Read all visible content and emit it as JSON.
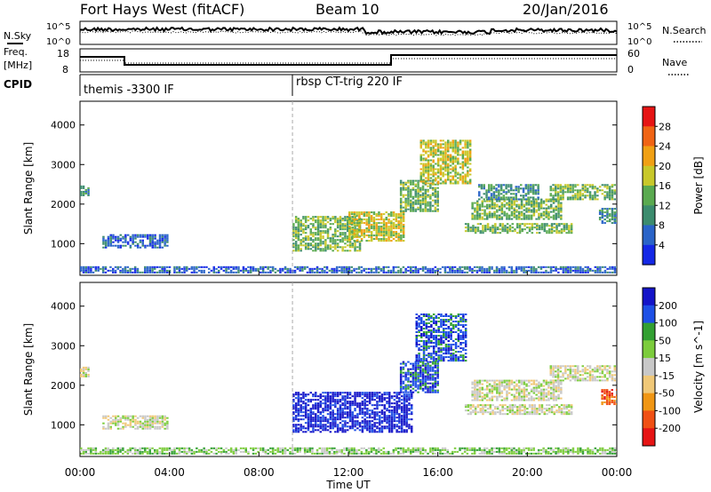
{
  "header": {
    "station": "Fort Hays West (fitACF)",
    "beam": "Beam 10",
    "date": "20/Jan/2016"
  },
  "noise_panel": {
    "left_label": "N.Sky",
    "left_ticks": [
      "10^5",
      "10^0"
    ],
    "right_label": "N.Search",
    "right_ticks": [
      "10^5",
      "10^0"
    ]
  },
  "freq_panel": {
    "left_label_1": "Freq.",
    "left_label_2": "[MHz]",
    "left_ticks": [
      "18",
      "8"
    ],
    "right_label": "Nave",
    "right_ticks": [
      "60",
      "0"
    ]
  },
  "cpid_panel": {
    "label": "CPID",
    "segments": [
      "themis -3300 IF",
      "rbsp CT-trig 220 IF"
    ]
  },
  "chart_data": [
    {
      "type": "heatmap",
      "name": "power",
      "ylabel": "Slant Range [km]",
      "yticks": [
        1000,
        2000,
        3000,
        4000
      ],
      "ylim": [
        200,
        4600
      ],
      "xlim": [
        0,
        24
      ],
      "colorbar_label": "Power [dB]",
      "colorbar_ticks": [
        "4",
        "8",
        "12",
        "16",
        "20",
        "24",
        "28"
      ],
      "colors": [
        "#1428e6",
        "#2a64c8",
        "#3c8c6e",
        "#5aaa50",
        "#c8c82a",
        "#f0a014",
        "#f06414",
        "#e61414"
      ],
      "regions": [
        {
          "t0": 0.0,
          "t1": 0.35,
          "r0": 2200,
          "r1": 2450,
          "level": 2
        },
        {
          "t0": 1.0,
          "t1": 3.9,
          "r0": 880,
          "r1": 1200,
          "level": 1
        },
        {
          "t0": 9.5,
          "t1": 12.5,
          "r0": 800,
          "r1": 1700,
          "level": 3
        },
        {
          "t0": 12.0,
          "t1": 14.5,
          "r0": 1050,
          "r1": 1800,
          "level": 4
        },
        {
          "t0": 14.3,
          "t1": 16.0,
          "r0": 1800,
          "r1": 2600,
          "level": 3
        },
        {
          "t0": 15.2,
          "t1": 17.5,
          "r0": 2500,
          "r1": 3600,
          "level": 4
        },
        {
          "t0": 17.2,
          "t1": 22.0,
          "r0": 1250,
          "r1": 1500,
          "level": 3
        },
        {
          "t0": 17.5,
          "t1": 21.5,
          "r0": 1600,
          "r1": 2100,
          "level": 3
        },
        {
          "t0": 17.8,
          "t1": 20.5,
          "r0": 2100,
          "r1": 2500,
          "level": 2
        },
        {
          "t0": 21.0,
          "t1": 23.9,
          "r0": 2100,
          "r1": 2500,
          "level": 3
        },
        {
          "t0": 23.2,
          "t1": 24.0,
          "r0": 1500,
          "r1": 1900,
          "level": 2
        },
        {
          "t0": 0.0,
          "t1": 24.0,
          "r0": 250,
          "r1": 420,
          "level": 1
        }
      ]
    },
    {
      "type": "heatmap",
      "name": "velocity",
      "ylabel": "Slant Range [km]",
      "yticks": [
        1000,
        2000,
        3000,
        4000
      ],
      "ylim": [
        200,
        4600
      ],
      "xlim": [
        0,
        24
      ],
      "colorbar_label": "Velocity [m s^-1]",
      "colorbar_ticks": [
        "200",
        "100",
        "50",
        "15",
        "-15",
        "-50",
        "-100",
        "-200"
      ],
      "colors": [
        "#1414c8",
        "#1e50e6",
        "#32a032",
        "#7ccc3c",
        "#c8c8c8",
        "#f0c878",
        "#f09614",
        "#f05014",
        "#e61414"
      ],
      "regions": [
        {
          "t0": 0.0,
          "t1": 0.35,
          "r0": 2200,
          "r1": 2450,
          "level": 4
        },
        {
          "t0": 1.0,
          "t1": 3.9,
          "r0": 880,
          "r1": 1200,
          "level": 4
        },
        {
          "t0": 9.5,
          "t1": 14.8,
          "r0": 800,
          "r1": 1800,
          "level": 0
        },
        {
          "t0": 14.3,
          "t1": 16.0,
          "r0": 1800,
          "r1": 2600,
          "level": 1
        },
        {
          "t0": 15.0,
          "t1": 17.2,
          "r0": 2600,
          "r1": 3800,
          "level": 1
        },
        {
          "t0": 17.2,
          "t1": 22.0,
          "r0": 1250,
          "r1": 1500,
          "level": 4
        },
        {
          "t0": 17.5,
          "t1": 21.5,
          "r0": 1600,
          "r1": 2100,
          "level": 4
        },
        {
          "t0": 21.0,
          "t1": 23.9,
          "r0": 2100,
          "r1": 2500,
          "level": 4
        },
        {
          "t0": 23.3,
          "t1": 24.0,
          "r0": 1500,
          "r1": 1900,
          "level": 7
        },
        {
          "t0": 0.0,
          "t1": 24.0,
          "r0": 250,
          "r1": 420,
          "level": 3
        }
      ]
    }
  ],
  "x_axis": {
    "ticks": [
      "00:00",
      "04:00",
      "08:00",
      "12:00",
      "16:00",
      "20:00",
      "00:00"
    ],
    "label": "Time UT"
  }
}
